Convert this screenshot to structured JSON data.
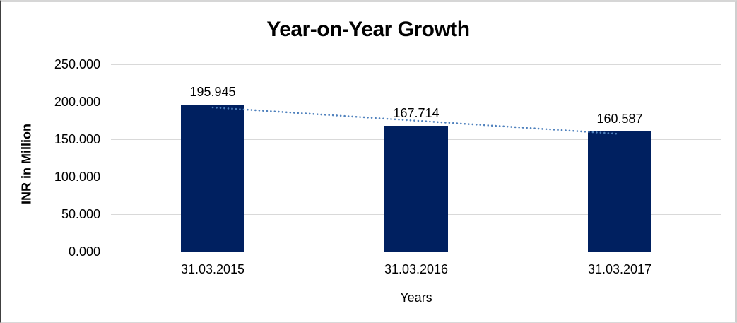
{
  "chart_data": {
    "type": "bar",
    "title": "Year-on-Year Growth",
    "xlabel": "Years",
    "ylabel": "INR in Million",
    "categories": [
      "31.03.2015",
      "31.03.2016",
      "31.03.2017"
    ],
    "values": [
      195.945,
      167.714,
      160.587
    ],
    "data_labels": [
      "195.945",
      "167.714",
      "160.587"
    ],
    "y_axis": {
      "tick_labels": [
        "250.000",
        "200.000",
        "150.000",
        "100.000",
        "50.000",
        "0.000"
      ],
      "tick_values": [
        250,
        200,
        150,
        100,
        50,
        0
      ],
      "min": 0,
      "max": 250
    },
    "grid": true,
    "legend": "none",
    "trendline": {
      "type": "linear",
      "style": "dotted",
      "fitted_values": [
        192.428,
        174.749,
        157.07
      ]
    },
    "colors": {
      "bar": "#002060",
      "trendline": "#4f81bd",
      "gridline": "#d9d9d9",
      "text": "#000000"
    }
  }
}
